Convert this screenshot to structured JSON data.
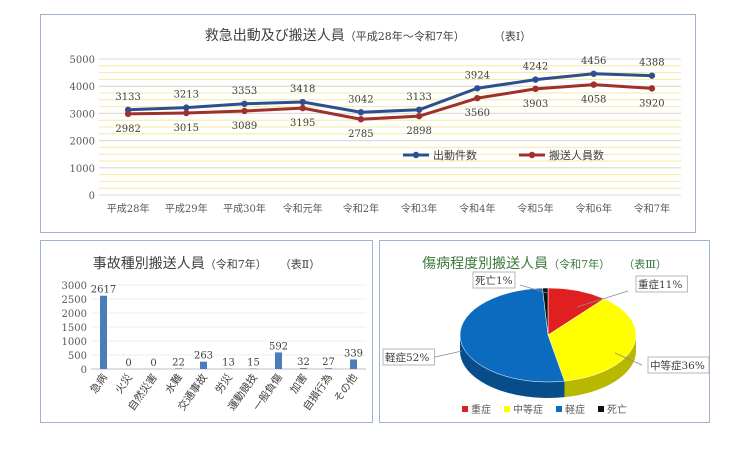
{
  "chart_data": [
    {
      "type": "line",
      "title": "救急出動及び搬送人員",
      "subtitle": "（平成28年～令和7年）",
      "table_label": "（表Ⅰ）",
      "categories": [
        "平成28年",
        "平成29年",
        "平成30年",
        "令和元年",
        "令和2年",
        "令和3年",
        "令和4年",
        "令和5年",
        "令和6年",
        "令和7年"
      ],
      "series": [
        {
          "name": "出動件数",
          "values": [
            3133,
            3213,
            3353,
            3418,
            3042,
            3133,
            3924,
            4242,
            4456,
            4388
          ],
          "color": "#2e4f8f"
        },
        {
          "name": "搬送人員数",
          "values": [
            2982,
            3015,
            3089,
            3195,
            2785,
            2898,
            3560,
            3903,
            4058,
            3920
          ],
          "color": "#a0302c"
        }
      ],
      "y_ticks": [
        "0",
        "1000",
        "2000",
        "3000",
        "4000",
        "5000"
      ],
      "ylim": [
        0,
        5000
      ],
      "grid": true,
      "legend": "right-middle"
    },
    {
      "type": "bar",
      "title": "事故種別搬送人員",
      "subtitle": "（令和7年）",
      "table_label": "（表Ⅱ）",
      "categories": [
        "急病",
        "火災",
        "自然災害",
        "水難",
        "交通事故",
        "労災",
        "運動競技",
        "一般負傷",
        "加害",
        "自損行為",
        "その他"
      ],
      "values": [
        2617,
        0,
        0,
        22,
        263,
        13,
        15,
        592,
        32,
        27,
        339
      ],
      "y_ticks": [
        "0",
        "500",
        "1000",
        "1500",
        "2000",
        "2500",
        "3000"
      ],
      "ylim": [
        0,
        3000
      ],
      "color": "#4a7ebb"
    },
    {
      "type": "pie",
      "title": "傷病程度別搬送人員",
      "subtitle": "（令和7年）",
      "table_label": "（表Ⅲ）",
      "slices": [
        {
          "name": "重症",
          "value": 11,
          "label": "重症11%",
          "color": "#e02020"
        },
        {
          "name": "中等症",
          "value": 36,
          "label": "中等症36%",
          "color": "#ffff00"
        },
        {
          "name": "軽症",
          "value": 52,
          "label": "軽症52%",
          "color": "#0a6bbf"
        },
        {
          "name": "死亡",
          "value": 1,
          "label": "死亡1%",
          "color": "#111111"
        }
      ],
      "legend": "bottom"
    }
  ]
}
